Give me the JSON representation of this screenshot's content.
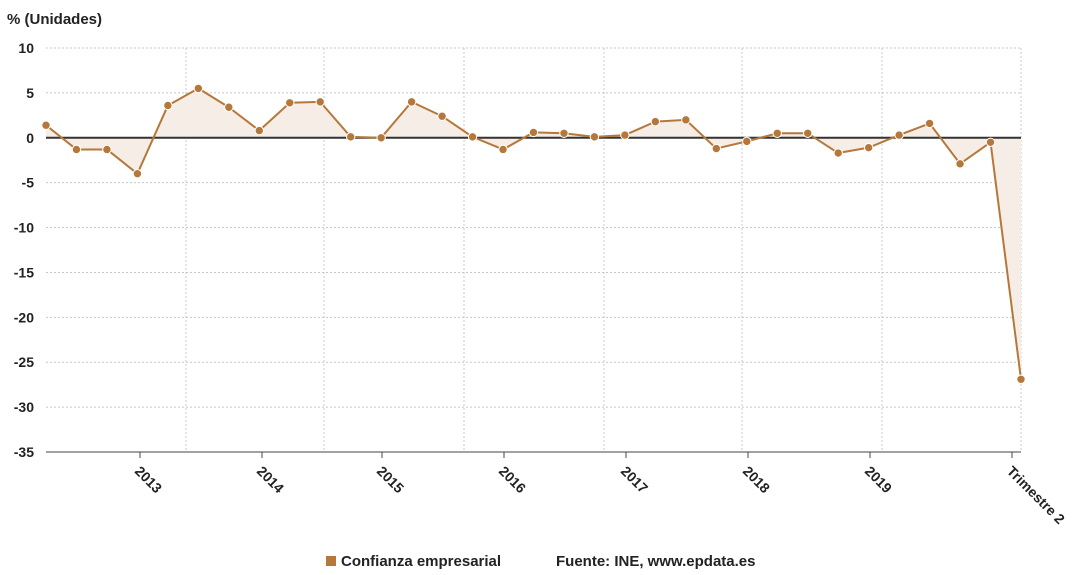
{
  "chart_data": {
    "type": "line",
    "ylabel": "% (Unidades)",
    "ylim": [
      -35,
      10
    ],
    "yticks": [
      10,
      5,
      0,
      -5,
      -10,
      -15,
      -20,
      -25,
      -30,
      -35
    ],
    "x_tick_labels": [
      "2013",
      "2014",
      "2015",
      "2016",
      "2017",
      "2018",
      "2019",
      "Trimestre 2"
    ],
    "grid": true,
    "legend_position": "bottom",
    "series": [
      {
        "name": "Confianza empresarial",
        "color": "#b5783a",
        "values": [
          1.4,
          -1.3,
          -1.3,
          -4.0,
          3.6,
          5.5,
          3.4,
          0.8,
          3.9,
          4.0,
          0.1,
          0.0,
          4.0,
          2.4,
          0.1,
          -1.3,
          0.6,
          0.5,
          0.1,
          0.3,
          1.8,
          2.0,
          -1.2,
          -0.4,
          0.5,
          0.5,
          -1.7,
          -1.1,
          0.3,
          1.6,
          -2.9,
          -0.5,
          -26.9
        ]
      }
    ],
    "zero_line_color": "#333333",
    "fill_color": "#f5ede6"
  },
  "legend": {
    "label": "Confianza empresarial",
    "swatch_color": "#b5783a"
  },
  "source": "Fuente: INE, www.epdata.es"
}
